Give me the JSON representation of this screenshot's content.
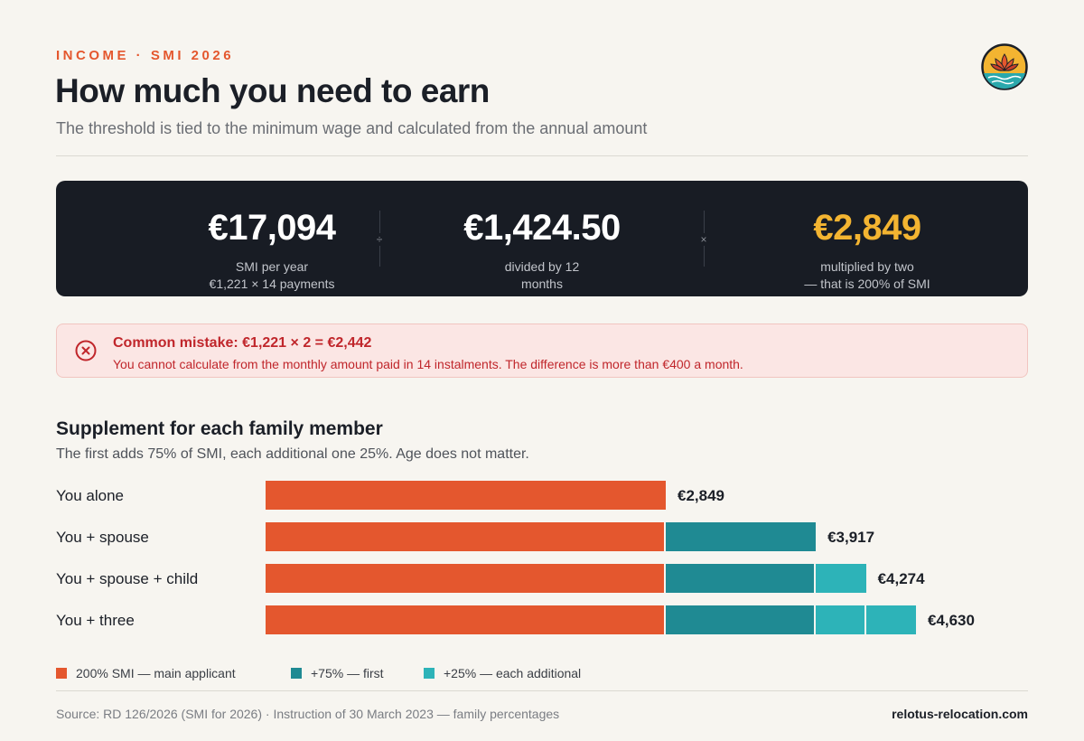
{
  "header": {
    "eyebrow": "INCOME · SMI 2026",
    "title": "How much you need to earn",
    "subtitle": "The threshold is tied to the minimum wage and calculated from the annual amount"
  },
  "stats": [
    {
      "value": "€17,094",
      "label_line1": "SMI per year",
      "label_line2": "€1,221 × 14 payments"
    },
    {
      "value": "€1,424.50",
      "label_line1": "divided by 12",
      "label_line2": "months"
    },
    {
      "value": "€2,849",
      "label_line1": "multiplied by two",
      "label_line2": "— that is 200% of SMI"
    }
  ],
  "operators": [
    "÷",
    "×"
  ],
  "alert": {
    "title": "Common mistake: €1,221 × 2 = €2,442",
    "body": "You cannot calculate from the monthly amount paid in 14 instalments. The difference is more than €400 a month."
  },
  "section": {
    "title": "Supplement for each family member",
    "subtitle": "The first adds 75% of SMI, each additional one 25%. Age does not matter."
  },
  "chart_data": {
    "type": "bar",
    "orientation": "horizontal",
    "stacked": true,
    "categories": [
      "You alone",
      "You + spouse",
      "You + spouse + child",
      "You + three"
    ],
    "segments": [
      [
        2849
      ],
      [
        2849,
        1068
      ],
      [
        2849,
        1068,
        357
      ],
      [
        2849,
        1068,
        357,
        356
      ]
    ],
    "segment_series": [
      [
        "200% SMI — main applicant"
      ],
      [
        "200% SMI — main applicant",
        "+75% — first"
      ],
      [
        "200% SMI — main applicant",
        "+75% — first",
        "+25% — each additional"
      ],
      [
        "200% SMI — main applicant",
        "+75% — first",
        "+25% — each additional",
        "+25% — each additional"
      ]
    ],
    "totals": [
      2849,
      3917,
      4274,
      4630
    ],
    "total_labels": [
      "€2,849",
      "€3,917",
      "€4,274",
      "€4,630"
    ],
    "series": [
      {
        "name": "200% SMI — main applicant",
        "color": "#e4572e"
      },
      {
        "name": "+75% — first",
        "color": "#1f8a93"
      },
      {
        "name": "+25% — each additional",
        "color": "#2db3b8"
      }
    ],
    "legend": "bottom-left",
    "grid": false
  },
  "footer": {
    "source": "Source: RD 126/2026 (SMI for 2026) · Instruction of 30 March 2023 — family percentages",
    "site": "relotus-relocation.com"
  },
  "colors": {
    "accent": "#e4572e",
    "highlight": "#f3b431",
    "dark_panel": "#181c24",
    "alert_text": "#c0262b"
  },
  "icons": {
    "logo": "lotus-logo",
    "alert": "error-circle-icon"
  }
}
